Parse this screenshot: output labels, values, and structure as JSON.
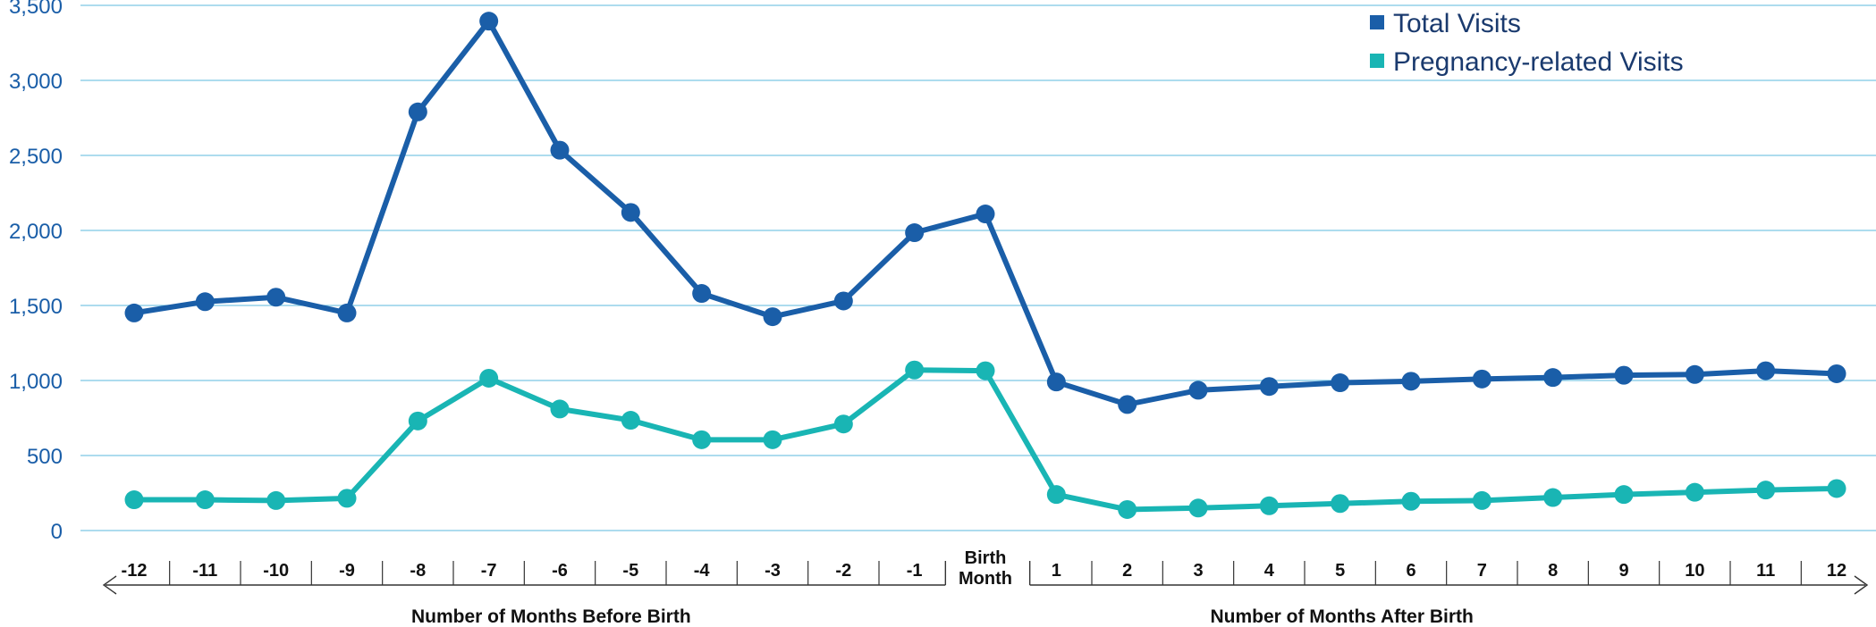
{
  "colors": {
    "total": "#1a5ea8",
    "pregnancy": "#19b5b4",
    "grid": "#7cc8e3",
    "y_tick_text": "#1a5ea8",
    "x_text": "#111111",
    "bracket": "#333333"
  },
  "chart_data": {
    "type": "line",
    "x_ticks": [
      "-12",
      "-11",
      "-10",
      "-9",
      "-8",
      "-7",
      "-6",
      "-5",
      "-4",
      "-3",
      "-2",
      "-1",
      "Birth Month",
      "1",
      "2",
      "3",
      "4",
      "5",
      "6",
      "7",
      "8",
      "9",
      "10",
      "11",
      "12"
    ],
    "birth_label_lines": [
      "Birth",
      "Month"
    ],
    "y_ticks": [
      "0",
      "500",
      "1,000",
      "1,500",
      "2,000",
      "2,500",
      "3,000",
      "3,500"
    ],
    "y_tick_values": [
      0,
      500,
      1000,
      1500,
      2000,
      2500,
      3000,
      3500
    ],
    "ylim": [
      0,
      3500
    ],
    "grid": true,
    "legend_position": "top-right",
    "before_label": "Number of Months Before Birth",
    "after_label": "Number of Months After Birth",
    "series": [
      {
        "name": "Total Visits",
        "color": "#1a5ea8",
        "values": [
          1450,
          1525,
          1555,
          1450,
          2790,
          3395,
          2535,
          2120,
          1580,
          1425,
          1530,
          1985,
          2110,
          990,
          840,
          935,
          960,
          985,
          995,
          1010,
          1020,
          1035,
          1040,
          1065,
          1045
        ]
      },
      {
        "name": "Pregnancy-related Visits",
        "color": "#19b5b4",
        "values": [
          205,
          205,
          200,
          215,
          730,
          1015,
          810,
          735,
          605,
          605,
          710,
          1070,
          1065,
          240,
          140,
          150,
          165,
          180,
          195,
          200,
          220,
          240,
          255,
          270,
          280
        ]
      }
    ]
  }
}
